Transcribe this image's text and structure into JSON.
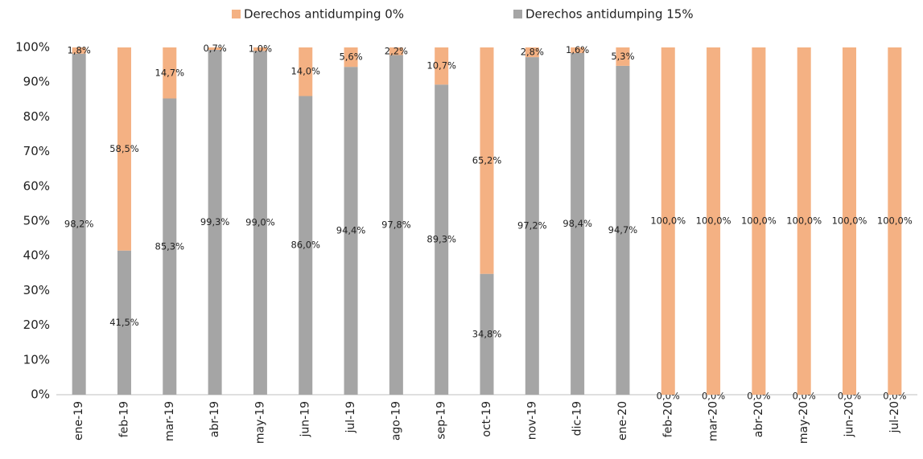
{
  "chart_data": {
    "type": "stacked_bar",
    "categories": [
      "ene-19",
      "feb-19",
      "mar-19",
      "abr-19",
      "may-19",
      "jun-19",
      "jul-19",
      "ago-19",
      "sep-19",
      "oct-19",
      "nov-19",
      "dic-19",
      "ene-20",
      "feb-20",
      "mar-20",
      "abr-20",
      "may-20",
      "jun-20",
      "jul-20"
    ],
    "series": [
      {
        "name": "Derechos antidumping 0%",
        "color": "#f4b183",
        "values": [
          1.8,
          58.5,
          14.7,
          0.7,
          1.0,
          14.0,
          5.6,
          2.2,
          10.7,
          65.2,
          2.8,
          1.6,
          5.3,
          100,
          100,
          100,
          100,
          100,
          100
        ],
        "value_labels": [
          "1,8%",
          "58,5%",
          "14,7%",
          "0,7%",
          "1,0%",
          "14,0%",
          "5,6%",
          "2,2%",
          "10,7%",
          "65,2%",
          "2,8%",
          "1,6%",
          "5,3%",
          "100,0%",
          "100,0%",
          "100,0%",
          "100,0%",
          "100,0%",
          "100,0%"
        ]
      },
      {
        "name": "Derechos antidumping 15%",
        "color": "#a5a5a5",
        "values": [
          98.2,
          41.5,
          85.3,
          99.3,
          99.0,
          86.0,
          94.4,
          97.8,
          89.3,
          34.8,
          97.2,
          98.4,
          94.7,
          0,
          0,
          0,
          0,
          0,
          0
        ],
        "value_labels": [
          "98,2%",
          "41,5%",
          "85,3%",
          "99,3%",
          "99,0%",
          "86,0%",
          "94,4%",
          "97,8%",
          "89,3%",
          "34,8%",
          "97,2%",
          "98,4%",
          "94,7%",
          "0,0%",
          "0,0%",
          "0,0%",
          "0,0%",
          "0,0%",
          "0,0%"
        ]
      }
    ],
    "ylim": [
      0,
      100
    ],
    "yticks": [
      {
        "value": 0,
        "label": "0%"
      },
      {
        "value": 10,
        "label": "10%"
      },
      {
        "value": 20,
        "label": "20%"
      },
      {
        "value": 30,
        "label": "30%"
      },
      {
        "value": 40,
        "label": "40%"
      },
      {
        "value": 50,
        "label": "50%"
      },
      {
        "value": 60,
        "label": "60%"
      },
      {
        "value": 70,
        "label": "70%"
      },
      {
        "value": 80,
        "label": "80%"
      },
      {
        "value": 90,
        "label": "90%"
      },
      {
        "value": 100,
        "label": "100%"
      }
    ],
    "legend": "top"
  }
}
